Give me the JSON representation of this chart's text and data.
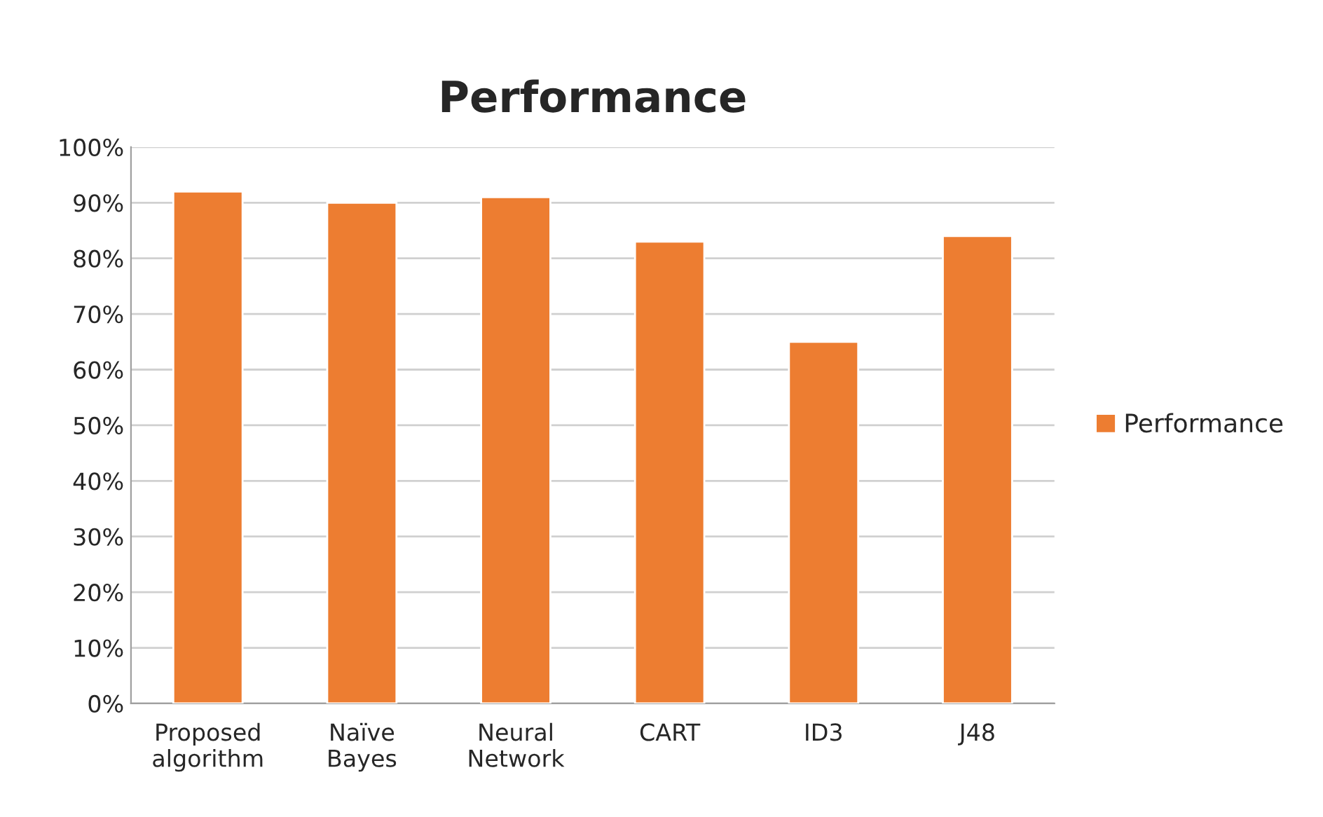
{
  "chart_data": {
    "type": "bar",
    "title": "Performance",
    "categories": [
      "Proposed\nalgorithm",
      "Naïve\nBayes",
      "Neural\nNetwork",
      "CART",
      "ID3",
      "J48"
    ],
    "series": [
      {
        "name": "Performance",
        "color": "#ed7d31",
        "values": [
          92,
          90,
          91,
          83,
          65,
          84
        ]
      }
    ],
    "ylim": [
      0,
      100
    ],
    "yticks": [
      {
        "value": 0,
        "label": "0%"
      },
      {
        "value": 10,
        "label": "10%"
      },
      {
        "value": 20,
        "label": "20%"
      },
      {
        "value": 30,
        "label": "30%"
      },
      {
        "value": 40,
        "label": "40%"
      },
      {
        "value": 50,
        "label": "50%"
      },
      {
        "value": 60,
        "label": "60%"
      },
      {
        "value": 70,
        "label": "70%"
      },
      {
        "value": 80,
        "label": "80%"
      },
      {
        "value": 90,
        "label": "90%"
      },
      {
        "value": 100,
        "label": "100%"
      }
    ],
    "grid": "y",
    "legend": "right"
  }
}
